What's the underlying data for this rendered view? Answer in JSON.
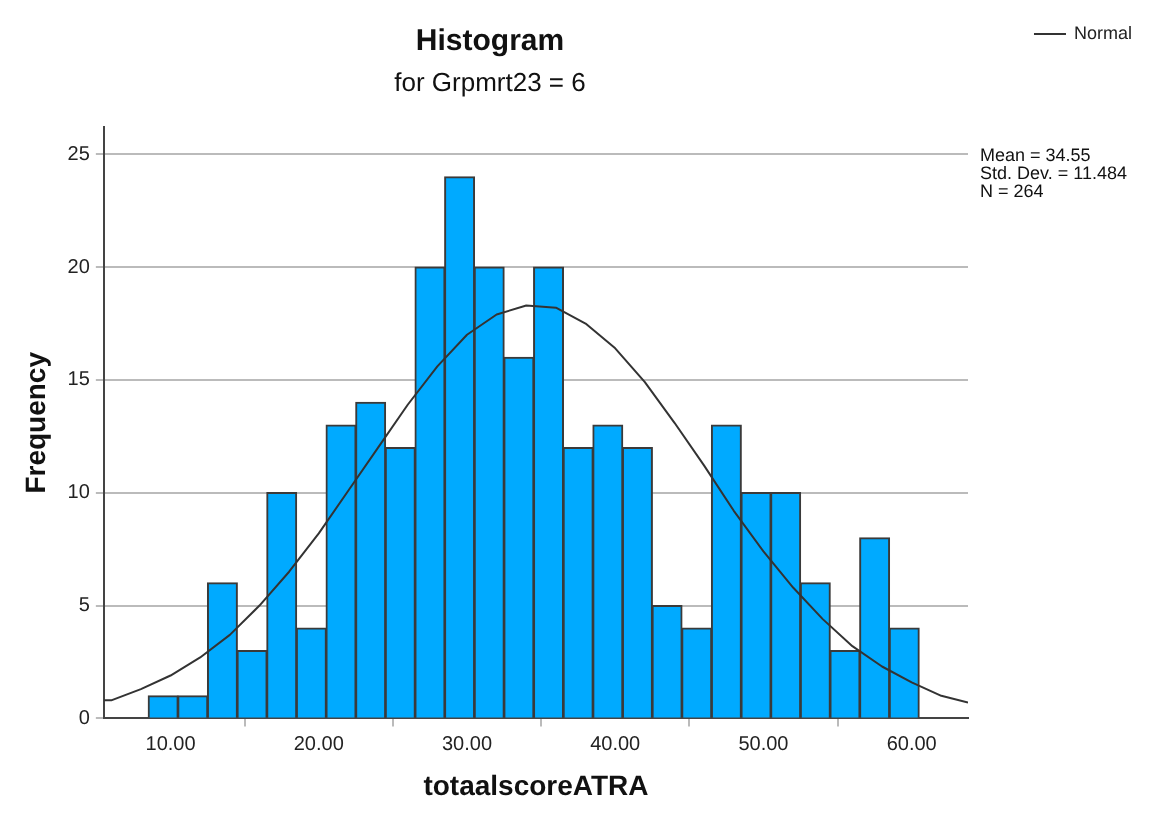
{
  "chart_data": {
    "type": "histogram",
    "title": "Histogram",
    "subtitle": "for Grpmrt23 = 6",
    "xlabel": "totaalscoreATRA",
    "ylabel": "Frequency",
    "bins": [
      8.5,
      10.5,
      12.5,
      14.5,
      16.5,
      18.5,
      20.5,
      22.5,
      24.5,
      26.5,
      28.5,
      30.5,
      32.5,
      34.5,
      36.5,
      38.5,
      40.5,
      42.5,
      44.5,
      46.5,
      48.5,
      50.5,
      52.5,
      54.5,
      56.5,
      58.5,
      60.5
    ],
    "values": [
      1,
      1,
      6,
      3,
      10,
      4,
      13,
      14,
      12,
      20,
      24,
      20,
      16,
      20,
      12,
      13,
      12,
      5,
      4,
      13,
      10,
      10,
      6,
      3,
      8,
      4
    ],
    "color": "#00aaff",
    "series": [
      {
        "name": "Normal",
        "type": "line",
        "color": "#333333",
        "x": [
          5.5,
          6,
          8,
          10,
          12,
          14,
          16,
          18,
          20,
          22,
          24,
          26,
          28,
          30,
          32,
          34,
          36,
          38,
          40,
          42,
          44,
          46,
          48,
          50,
          52,
          54,
          56,
          58,
          60,
          62,
          63.8
        ],
        "values": [
          0.8,
          0.8,
          1.3,
          1.9,
          2.7,
          3.7,
          5,
          6.5,
          8.2,
          10.1,
          12,
          13.9,
          15.6,
          17,
          17.9,
          18.3,
          18.2,
          17.5,
          16.4,
          14.9,
          13.1,
          11.2,
          9.2,
          7.4,
          5.8,
          4.4,
          3.2,
          2.3,
          1.6,
          1,
          0.7
        ]
      }
    ],
    "xlim": [
      5.5,
      63.8
    ],
    "xticks": [
      {
        "value": 10,
        "label": "10.00"
      },
      {
        "value": 20,
        "label": "20.00"
      },
      {
        "value": 30,
        "label": "30.00"
      },
      {
        "value": 40,
        "label": "40.00"
      },
      {
        "value": 50,
        "label": "50.00"
      },
      {
        "value": 60,
        "label": "60.00"
      }
    ],
    "ylim": [
      0,
      26.2
    ],
    "yticks": [
      0,
      5,
      10,
      15,
      20,
      25
    ],
    "grid": "y",
    "legend": "top right",
    "marker": "none",
    "line_style": "solid",
    "annotations": [
      "Mean = 34.55",
      "Std. Dev. = 11.484",
      "N = 264"
    ]
  }
}
